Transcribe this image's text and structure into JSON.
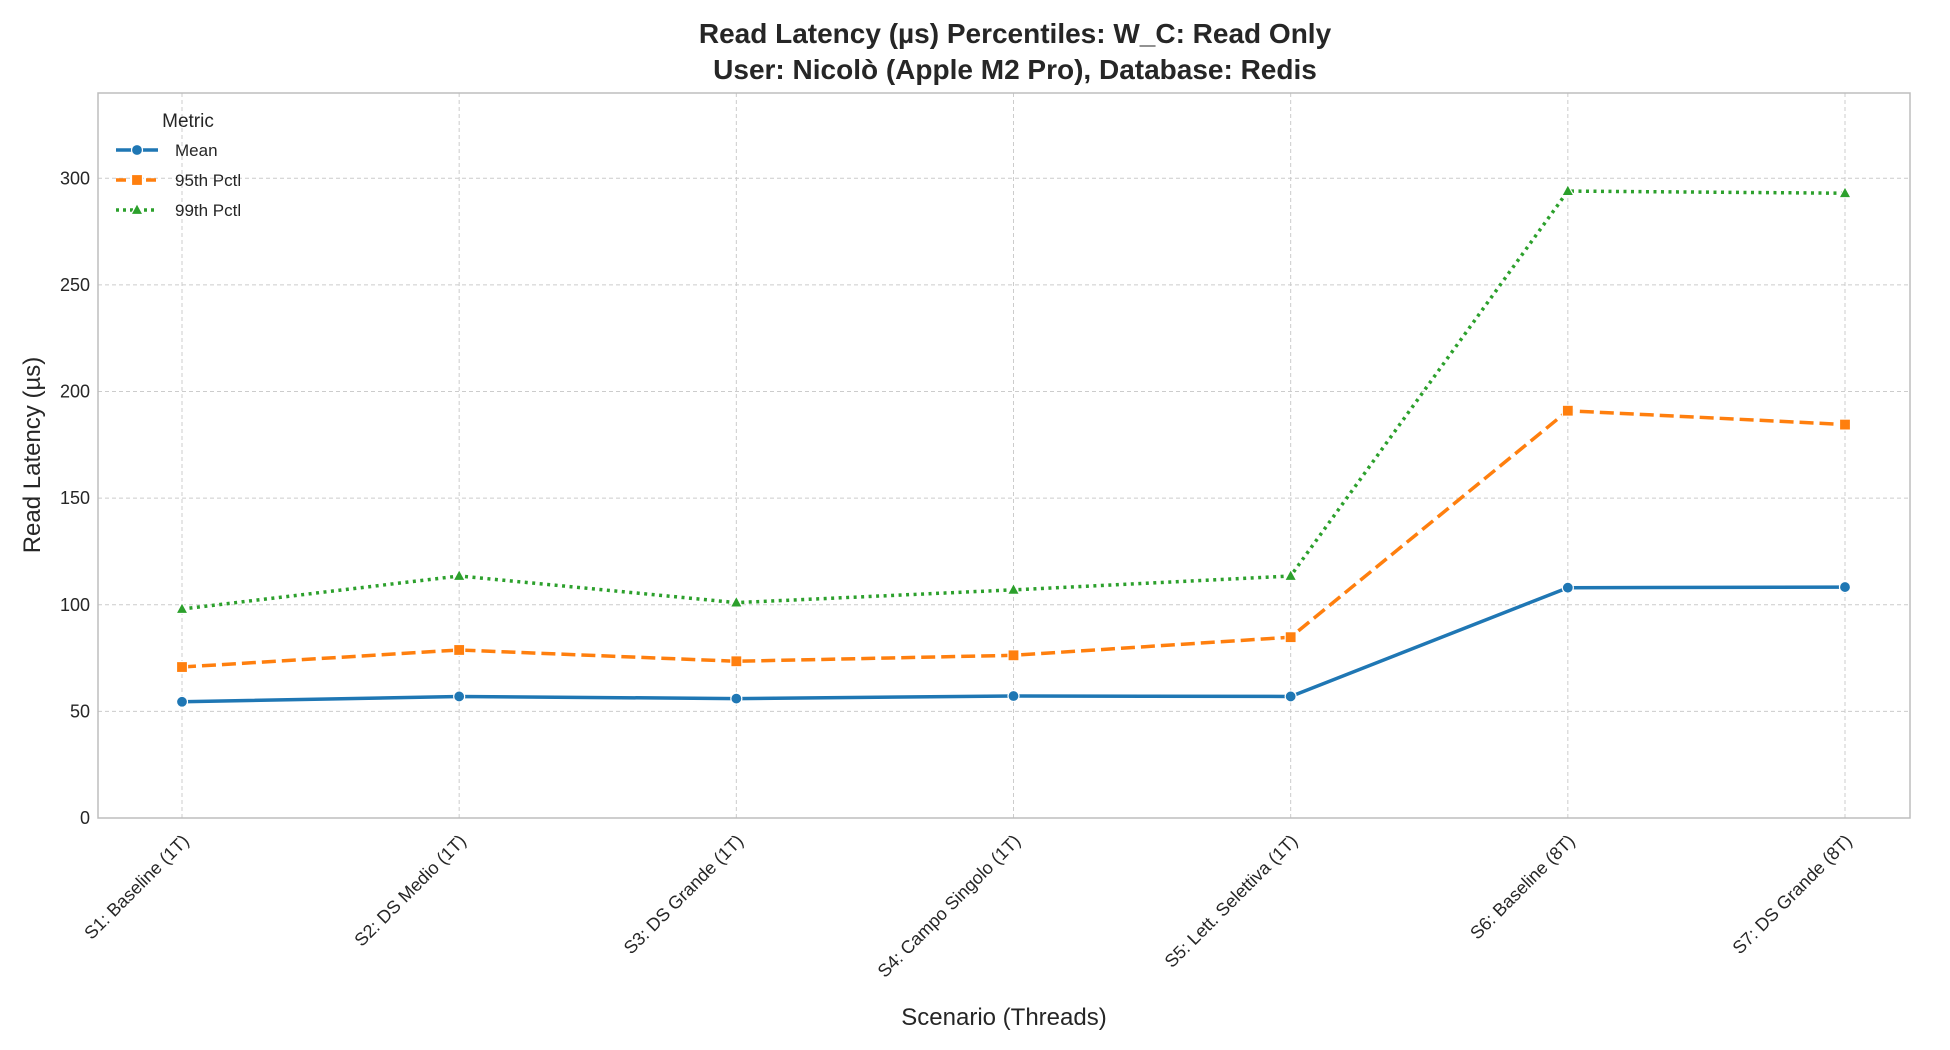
{
  "chart_data": {
    "type": "line",
    "title": "Read Latency (µs) Percentiles: W_C: Read Only",
    "subtitle": "User: Nicolò (Apple M2 Pro), Database: Redis",
    "xlabel": "Scenario (Threads)",
    "ylabel": "Read Latency (µs)",
    "ylim": [
      0,
      340
    ],
    "yticks": [
      0,
      50,
      100,
      150,
      200,
      250,
      300
    ],
    "grid": true,
    "legend": {
      "title": "Metric",
      "position": "top-left"
    },
    "categories": [
      "S1: Baseline (1T)",
      "S2: DS Medio (1T)",
      "S3: DS Grande (1T)",
      "S4: Campo Singolo (1T)",
      "S5: Lett. Selettiva (1T)",
      "S6: Baseline (8T)",
      "S7: DS Grande (8T)"
    ],
    "series": [
      {
        "name": "Mean",
        "color": "#1f77b4",
        "line_style": "solid",
        "marker": "circle",
        "values": [
          54.5,
          57,
          56,
          57.2,
          57,
          108,
          108.3
        ]
      },
      {
        "name": "95th Pctl",
        "color": "#ff7f0e",
        "line_style": "dashed",
        "marker": "square",
        "values": [
          70.8,
          78.8,
          73.5,
          76.3,
          84.8,
          191,
          184.5
        ]
      },
      {
        "name": "99th Pctl",
        "color": "#2ca02c",
        "line_style": "dotted",
        "marker": "triangle",
        "values": [
          98,
          113.5,
          101,
          107,
          113.5,
          294,
          293
        ]
      }
    ]
  }
}
